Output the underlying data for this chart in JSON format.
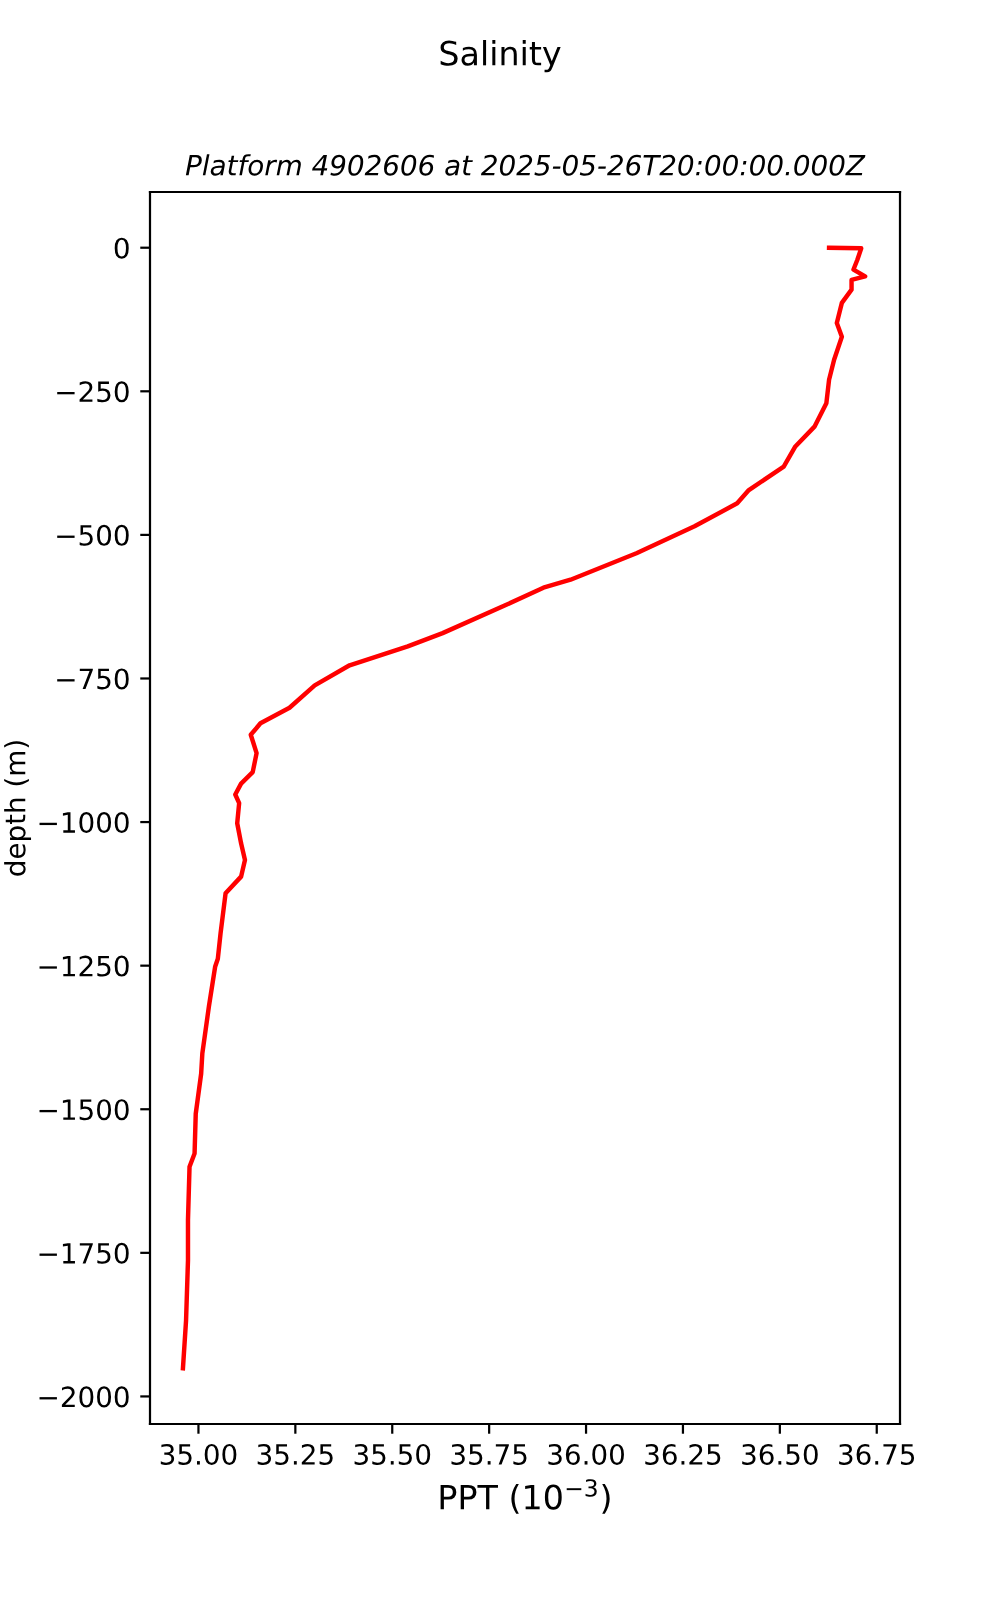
{
  "chart_data": {
    "type": "line",
    "title": "Salinity",
    "subtitle": "Platform 4902606 at 2025-05-26T20:00:00.000Z",
    "xlabel": "PPT (10$^{−3}$)",
    "ylabel": "depth (m)",
    "series": [
      {
        "color": "#ff0000",
        "x": [
          36.627,
          36.71,
          36.7,
          36.69,
          36.72,
          36.685,
          36.685,
          36.66,
          36.647,
          36.66,
          36.64,
          36.627,
          36.62,
          36.59,
          36.54,
          36.51,
          36.42,
          36.39,
          36.28,
          36.13,
          35.96,
          35.89,
          35.79,
          35.63,
          35.54,
          35.39,
          35.3,
          35.235,
          35.16,
          35.135,
          35.15,
          35.14,
          35.11,
          35.095,
          35.105,
          35.1,
          35.11,
          35.12,
          35.11,
          35.07,
          35.057,
          35.05,
          35.043,
          35.027,
          35.01,
          35.007,
          34.993,
          34.99,
          34.977,
          34.973,
          34.973,
          34.968,
          34.96
        ],
        "values": [
          0,
          -1,
          -21,
          -38,
          -50,
          -56,
          -73,
          -96,
          -131,
          -155,
          -195,
          -230,
          -271,
          -311,
          -346,
          -381,
          -422,
          -445,
          -485,
          -532,
          -578,
          -592,
          -623,
          -671,
          -694,
          -727,
          -762,
          -801,
          -828,
          -848,
          -880,
          -913,
          -933,
          -952,
          -967,
          -1002,
          -1037,
          -1066,
          -1095,
          -1124,
          -1194,
          -1238,
          -1252,
          -1321,
          -1403,
          -1438,
          -1508,
          -1577,
          -1600,
          -1693,
          -1763,
          -1868,
          -1951
        ]
      }
    ],
    "xlim": [
      34.875,
      36.81
    ],
    "ylim": [
      -2048,
      97
    ],
    "xticks": [
      {
        "value": 35.0,
        "label": "35.00"
      },
      {
        "value": 35.25,
        "label": "35.25"
      },
      {
        "value": 35.5,
        "label": "35.50"
      },
      {
        "value": 35.75,
        "label": "35.75"
      },
      {
        "value": 36.0,
        "label": "36.00"
      },
      {
        "value": 36.25,
        "label": "36.25"
      },
      {
        "value": 36.5,
        "label": "36.50"
      },
      {
        "value": 36.75,
        "label": "36.75"
      }
    ],
    "yticks": [
      {
        "value": 0,
        "label": "0"
      },
      {
        "value": -250,
        "label": "−250"
      },
      {
        "value": -500,
        "label": "−500"
      },
      {
        "value": -750,
        "label": "−750"
      },
      {
        "value": -1000,
        "label": "−1000"
      },
      {
        "value": -1250,
        "label": "−1250"
      },
      {
        "value": -1500,
        "label": "−1500"
      },
      {
        "value": -1750,
        "label": "−1750"
      },
      {
        "value": -2000,
        "label": "−2000"
      }
    ],
    "grid": false,
    "legend": false,
    "line_style": "solid"
  }
}
